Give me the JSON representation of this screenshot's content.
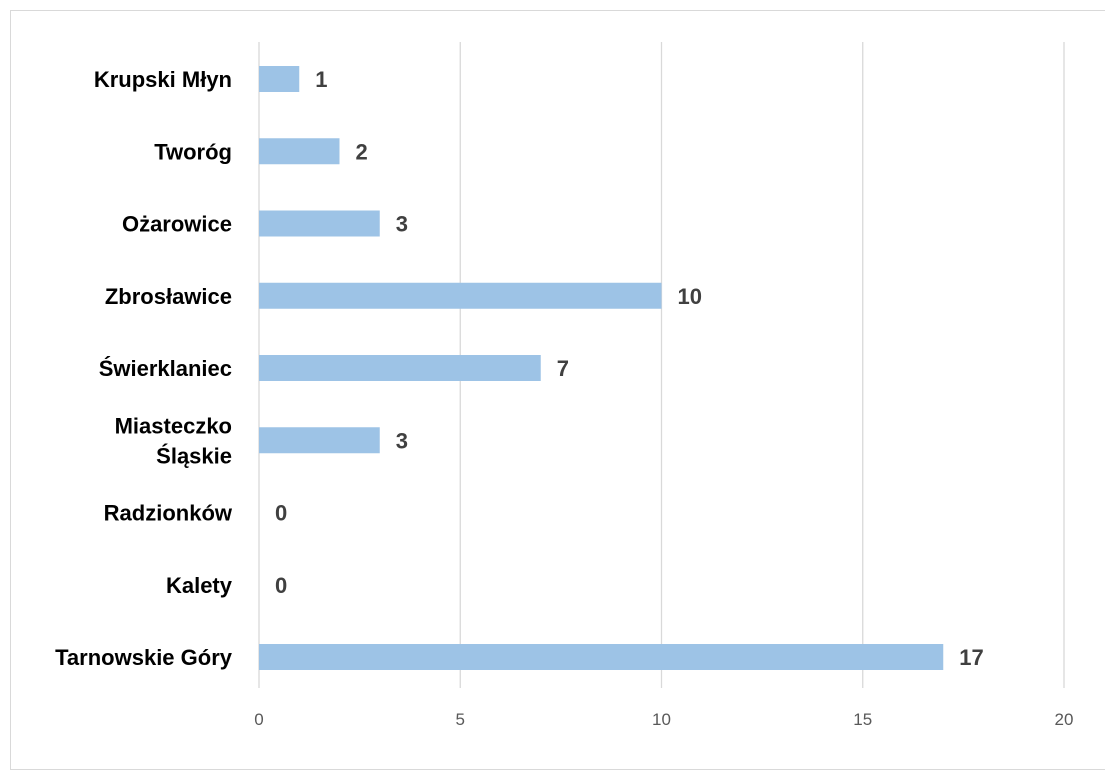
{
  "chart_data": {
    "type": "bar",
    "orientation": "horizontal",
    "categories": [
      [
        "Krupski Młyn"
      ],
      [
        "Tworóg"
      ],
      [
        "Ożarowice"
      ],
      [
        "Zbrosławice"
      ],
      [
        "Świerklaniec"
      ],
      [
        "Miasteczko",
        "Śląskie"
      ],
      [
        "Radzionków"
      ],
      [
        "Kalety"
      ],
      [
        "Tarnowskie Góry"
      ]
    ],
    "values": [
      1,
      2,
      3,
      10,
      7,
      3,
      0,
      0,
      17
    ],
    "value_labels": [
      "1",
      "2",
      "3",
      "10",
      "7",
      "3",
      "0",
      "0",
      "17"
    ],
    "xlim": [
      0,
      20
    ],
    "xticks": [
      0,
      5,
      10,
      15,
      20
    ],
    "xtick_labels": [
      "0",
      "5",
      "10",
      "15",
      "20"
    ],
    "grid": "vertical",
    "legend": "none",
    "title": "",
    "xlabel": "",
    "ylabel": "",
    "colors": {
      "bar": "#9dc3e6",
      "grid": "#d9d9d9",
      "category_text": "#000000",
      "data_label_text": "#404040",
      "tick_text": "#595959",
      "frame": "#d9d9d9"
    }
  }
}
